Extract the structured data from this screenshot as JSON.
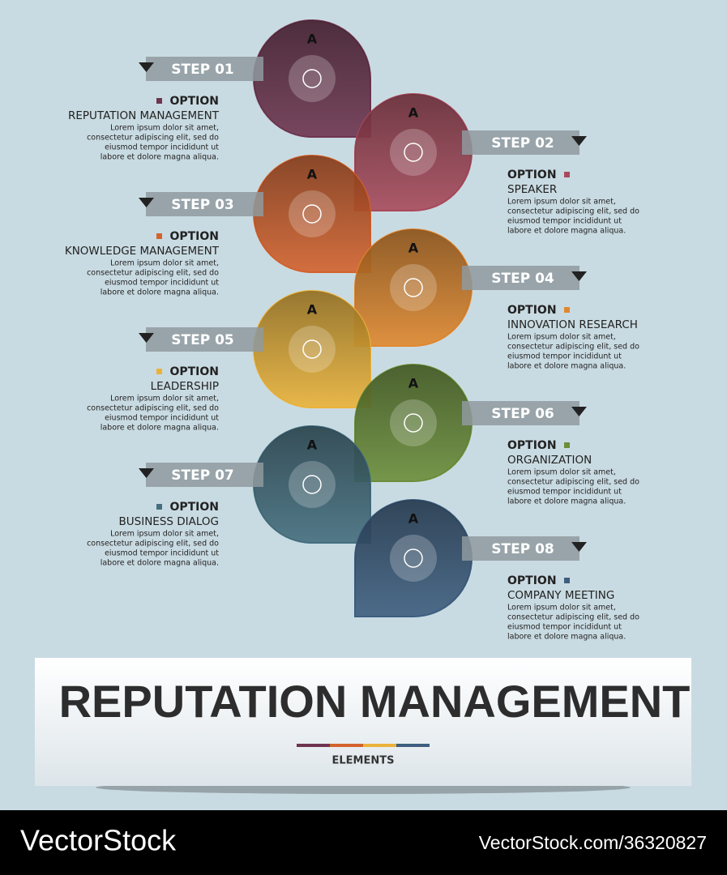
{
  "steps": [
    {
      "step": "STEP 01",
      "letter": "A",
      "option": "OPTION",
      "title": "REPUTATION MANAGEMENT",
      "body": [
        "Lorem ipsum dolor sit amet,",
        "consectetur adipiscing elit, sed do",
        "eiusmod tempor incididunt ut",
        "labore et dolore magna aliqua."
      ],
      "color": "#6e3550"
    },
    {
      "step": "STEP 02",
      "letter": "A",
      "option": "OPTION",
      "title": "SPEAKER",
      "body": [
        "Lorem ipsum dolor sit amet,",
        "consectetur adipiscing elit, sed do",
        "eiusmod tempor incididunt ut",
        "labore et dolore magna aliqua."
      ],
      "color": "#a84a5c"
    },
    {
      "step": "STEP 03",
      "letter": "A",
      "option": "OPTION",
      "title": "KNOWLEDGE MANAGEMENT",
      "body": [
        "Lorem ipsum dolor sit amet,",
        "consectetur adipiscing elit, sed do",
        "eiusmod tempor incididunt ut",
        "labore et dolore magna aliqua."
      ],
      "color": "#d4622d"
    },
    {
      "step": "STEP 04",
      "letter": "A",
      "option": "OPTION",
      "title": "INNOVATION RESEARCH",
      "body": [
        "Lorem ipsum dolor sit amet,",
        "consectetur adipiscing elit, sed do",
        "eiusmod tempor incididunt ut",
        "labore et dolore magna aliqua."
      ],
      "color": "#e0872e"
    },
    {
      "step": "STEP 05",
      "letter": "A",
      "option": "OPTION",
      "title": "LEADERSHIP",
      "body": [
        "Lorem ipsum dolor sit amet,",
        "consectetur adipiscing elit, sed do",
        "eiusmod tempor incididunt ut",
        "labore et dolore magna aliqua."
      ],
      "color": "#ebb23a"
    },
    {
      "step": "STEP 06",
      "letter": "A",
      "option": "OPTION",
      "title": "ORGANIZATION",
      "body": [
        "Lorem ipsum dolor sit amet,",
        "consectetur adipiscing elit, sed do",
        "eiusmod tempor incididunt ut",
        "labore et dolore magna aliqua."
      ],
      "color": "#6b8e3a"
    },
    {
      "step": "STEP 07",
      "letter": "A",
      "option": "OPTION",
      "title": "BUSINESS DIALOG",
      "body": [
        "Lorem ipsum dolor sit amet,",
        "consectetur adipiscing elit, sed do",
        "eiusmod tempor incididunt ut",
        "labore et dolore magna aliqua."
      ],
      "color": "#456e7e"
    },
    {
      "step": "STEP 08",
      "letter": "A",
      "option": "OPTION",
      "title": "COMPANY MEETING",
      "body": [
        "Lorem ipsum dolor sit amet,",
        "consectetur adipiscing elit, sed do",
        "eiusmod tempor incididunt ut",
        "labore et dolore magna aliqua."
      ],
      "color": "#3e5e80"
    }
  ],
  "header": {
    "title": "REPUTATION MANAGEMENT",
    "subtitle": "ELEMENTS"
  },
  "footer": {
    "brand": "VectorStock",
    "id": "VectorStock.com/36320827"
  }
}
